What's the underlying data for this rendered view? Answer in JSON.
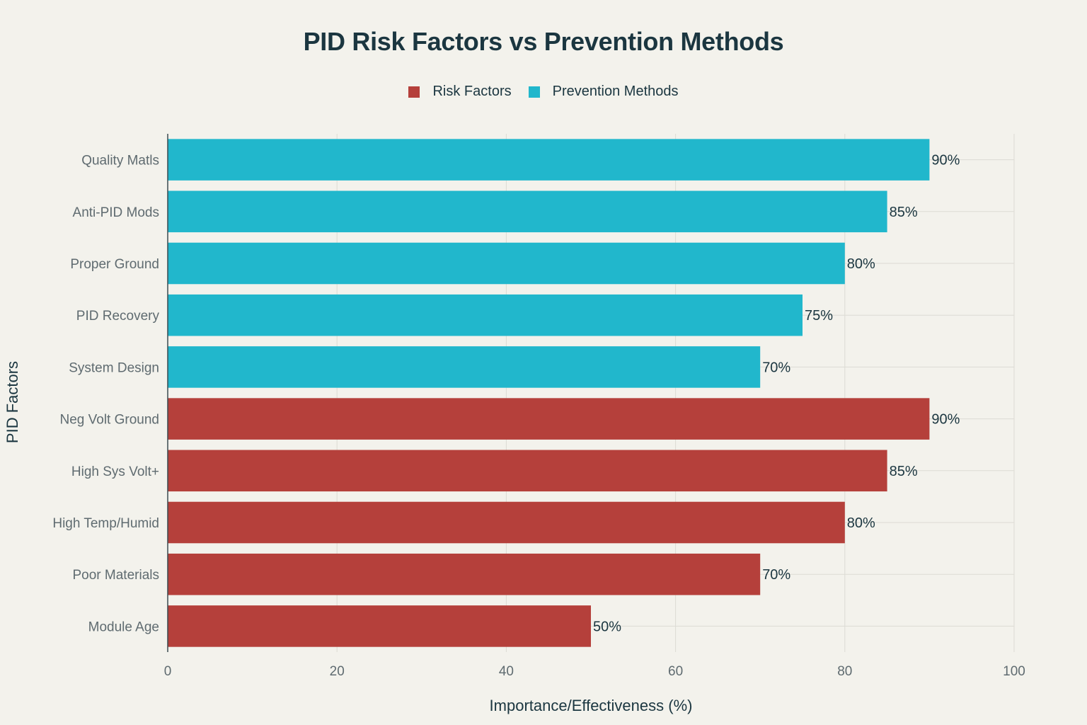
{
  "chart_data": {
    "type": "bar",
    "orientation": "horizontal",
    "title": "PID Risk Factors vs Prevention Methods",
    "xlabel": "Importance/Effectiveness (%)",
    "ylabel": "PID Factors",
    "xlim": [
      0,
      100
    ],
    "x_ticks": [
      0,
      20,
      40,
      60,
      80,
      100
    ],
    "grid": true,
    "legend_position": "top-center",
    "legend": [
      {
        "name": "Risk Factors",
        "color": "#b5403b"
      },
      {
        "name": "Prevention Methods",
        "color": "#21b7cc"
      }
    ],
    "bars": [
      {
        "category": "Quality Matls",
        "value": 90,
        "label": "90%",
        "series": "Prevention Methods"
      },
      {
        "category": "Anti-PID Mods",
        "value": 85,
        "label": "85%",
        "series": "Prevention Methods"
      },
      {
        "category": "Proper Ground",
        "value": 80,
        "label": "80%",
        "series": "Prevention Methods"
      },
      {
        "category": "PID Recovery",
        "value": 75,
        "label": "75%",
        "series": "Prevention Methods"
      },
      {
        "category": "System Design",
        "value": 70,
        "label": "70%",
        "series": "Prevention Methods"
      },
      {
        "category": "Neg Volt Ground",
        "value": 90,
        "label": "90%",
        "series": "Risk Factors"
      },
      {
        "category": "High Sys Volt+",
        "value": 85,
        "label": "85%",
        "series": "Risk Factors"
      },
      {
        "category": "High Temp/Humid",
        "value": 80,
        "label": "80%",
        "series": "Risk Factors"
      },
      {
        "category": "Poor Materials",
        "value": 70,
        "label": "70%",
        "series": "Risk Factors"
      },
      {
        "category": "Module Age",
        "value": 50,
        "label": "50%",
        "series": "Risk Factors"
      }
    ]
  }
}
